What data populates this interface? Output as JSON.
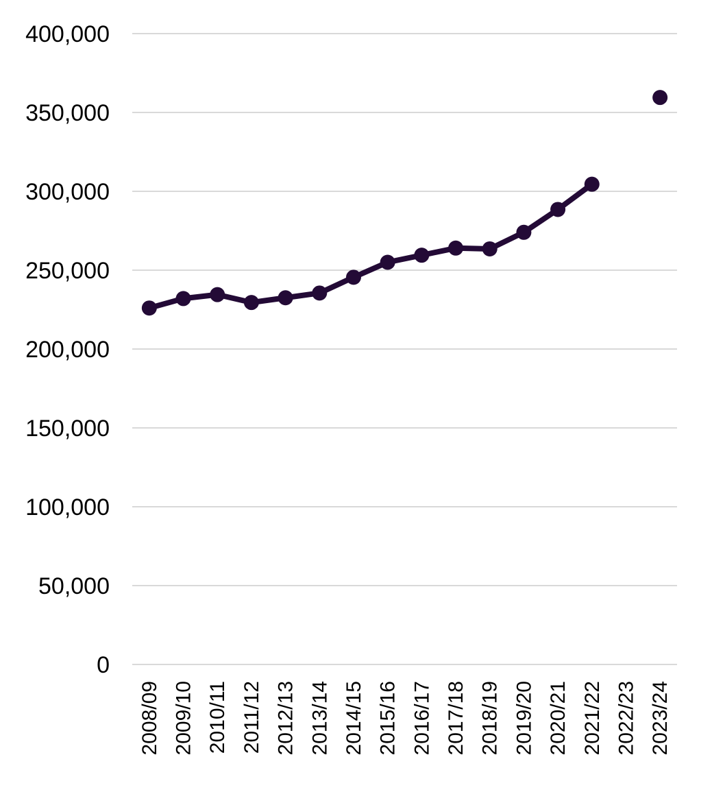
{
  "chart_data": {
    "type": "line",
    "title": "",
    "xlabel": "",
    "ylabel": "",
    "ylim": [
      0,
      400000
    ],
    "y_ticks": [
      0,
      50000,
      100000,
      150000,
      200000,
      250000,
      300000,
      350000,
      400000
    ],
    "y_tick_labels": [
      "0",
      "50,000",
      "100,000",
      "150,000",
      "200,000",
      "250,000",
      "300,000",
      "350,000",
      "400,000"
    ],
    "grid": true,
    "legend": "none",
    "categories": [
      "2008/09",
      "2009/10",
      "2010/11",
      "2011/12",
      "2012/13",
      "2013/14",
      "2014/15",
      "2015/16",
      "2016/17",
      "2017/18",
      "2018/19",
      "2019/20",
      "2020/21",
      "2021/22",
      "2022/23",
      "2023/24"
    ],
    "series": [
      {
        "color": "#230a36",
        "values": [
          226000,
          232000,
          234500,
          229500,
          232500,
          235500,
          245500,
          255000,
          259500,
          264000,
          263500,
          274000,
          288500,
          304500,
          null,
          359500
        ]
      }
    ]
  }
}
